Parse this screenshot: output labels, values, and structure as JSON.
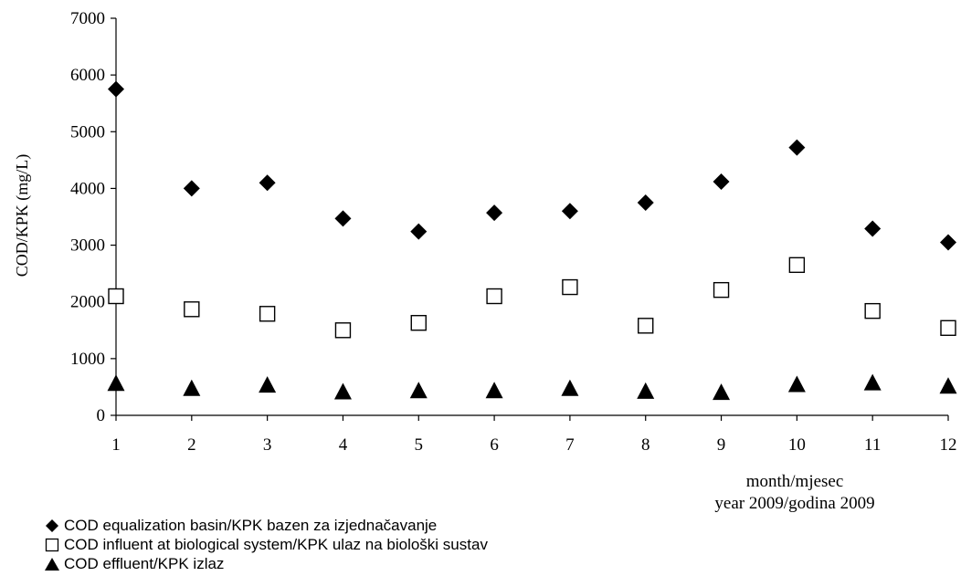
{
  "chart_data": {
    "type": "scatter",
    "ylabel": "COD/KPK (mg/L)",
    "xlabel_line1": "month/mjesec",
    "xlabel_line2": "year 2009/godina 2009",
    "x": [
      1,
      2,
      3,
      4,
      5,
      6,
      7,
      8,
      9,
      10,
      11,
      12
    ],
    "xticks": [
      "1",
      "2",
      "3",
      "4",
      "5",
      "6",
      "7",
      "8",
      "9",
      "10",
      "11",
      "12"
    ],
    "ylim": [
      0,
      7000
    ],
    "yticks": [
      "0",
      "1000",
      "2000",
      "3000",
      "4000",
      "5000",
      "6000",
      "7000"
    ],
    "grid": false,
    "legend_position": "bottom-left",
    "series": [
      {
        "name": "COD equalization basin/KPK bazen za izjednačavanje",
        "marker": "diamond",
        "color": "#000000",
        "values": [
          5750,
          4000,
          4100,
          3470,
          3240,
          3570,
          3600,
          3750,
          4120,
          4720,
          3290,
          3050
        ]
      },
      {
        "name": "COD influent at biological system/KPK ulaz na biološki sustav",
        "marker": "square-open",
        "color": "#000000",
        "values": [
          2100,
          1870,
          1790,
          1500,
          1630,
          2100,
          2260,
          1580,
          2210,
          2650,
          1840,
          1540
        ]
      },
      {
        "name": "COD effluent/KPK izlaz",
        "marker": "triangle",
        "color": "#000000",
        "values": [
          560,
          470,
          530,
          410,
          430,
          430,
          470,
          420,
          400,
          540,
          570,
          510
        ]
      }
    ]
  }
}
